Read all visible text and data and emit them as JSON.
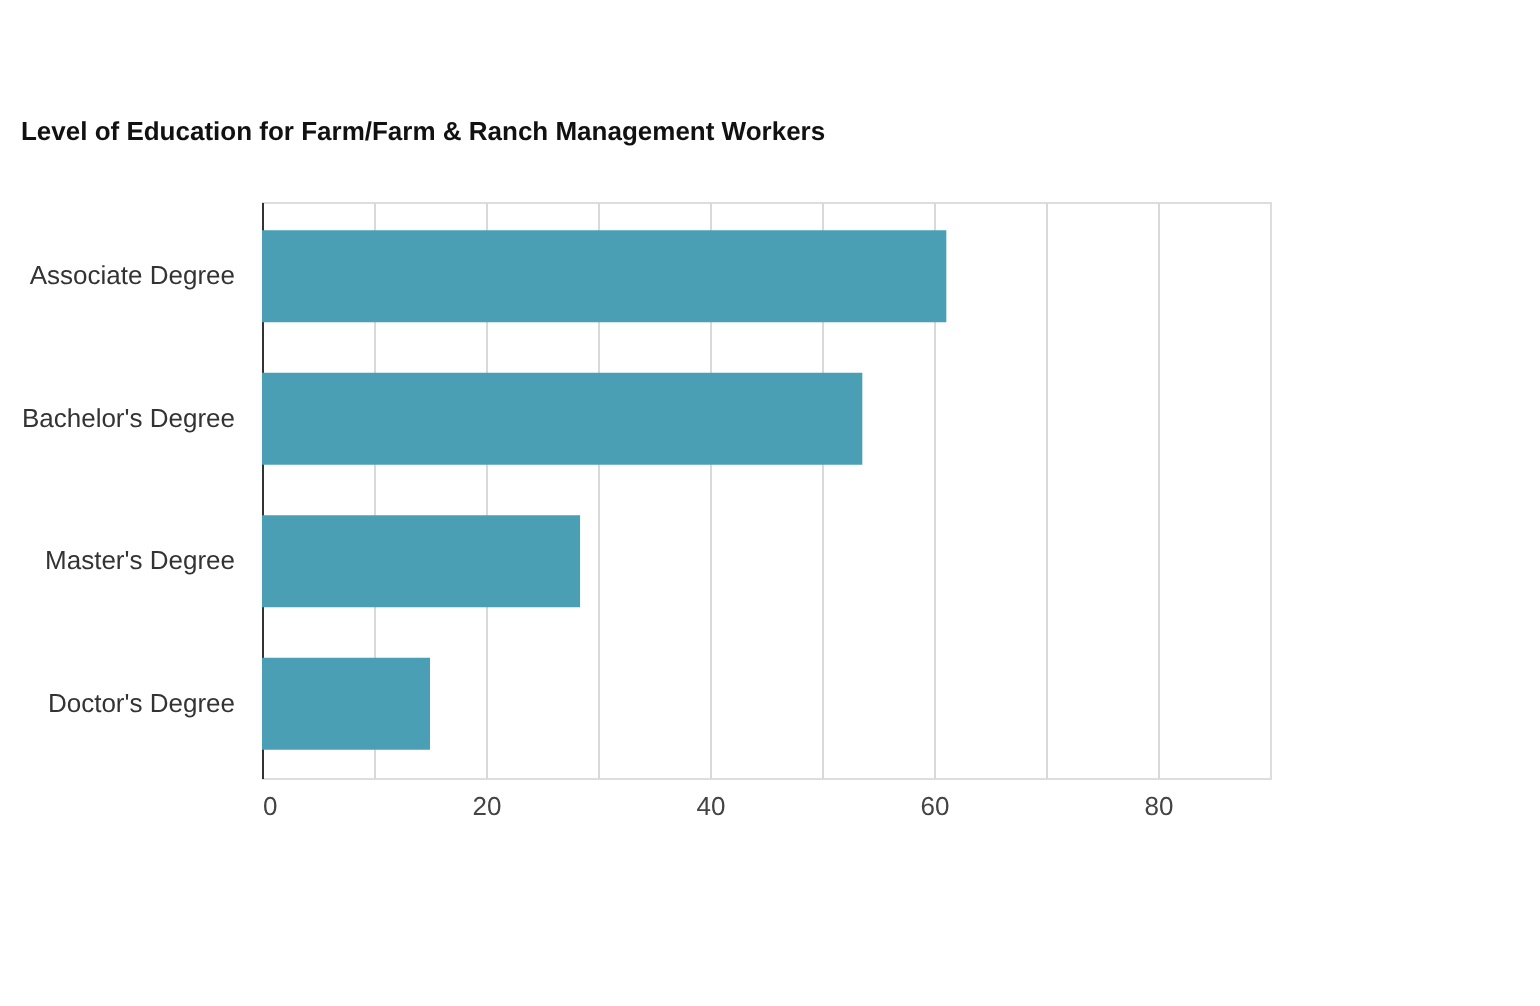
{
  "chart_data": {
    "type": "bar",
    "orientation": "horizontal",
    "title": "Level of Education for Farm/Farm & Ranch Management Workers",
    "categories": [
      "Associate Degree",
      "Bachelor's Degree",
      "Master's Degree",
      "Doctor's Degree"
    ],
    "values": [
      61.1,
      53.6,
      28.4,
      15.0
    ],
    "color": "#4a9fb5",
    "xlim": [
      0,
      90
    ],
    "xticks": [
      0,
      {
        "value": 10,
        "label": null
      },
      20,
      {
        "value": 30,
        "label": null
      },
      40,
      {
        "value": 50,
        "label": null
      },
      60,
      {
        "value": 70,
        "label": null
      },
      80
    ],
    "grid": "x"
  }
}
